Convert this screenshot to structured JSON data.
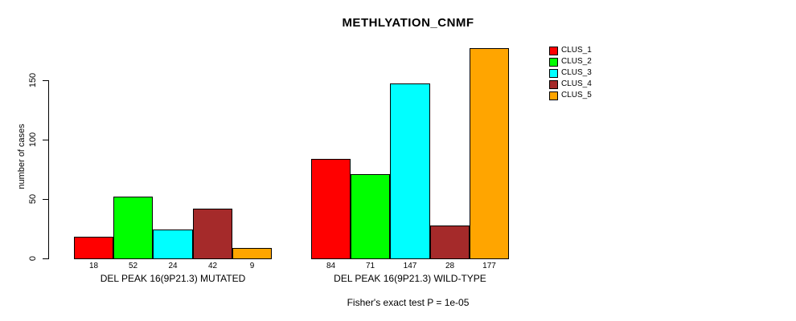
{
  "chart_data": {
    "type": "bar",
    "title": "METHLYATION_CNMF",
    "ylabel": "number of cases",
    "xlabel": "",
    "footnote": "Fisher's exact test P = 1e-05",
    "yticks": [
      0,
      50,
      100,
      150
    ],
    "ylim": [
      0,
      180
    ],
    "grid": false,
    "legend_position": "right",
    "bar_border_color": "#000000",
    "axis_color": "#000000",
    "background_color": "#ffffff",
    "categories": [
      "DEL PEAK 16(9P21.3) MUTATED",
      "DEL PEAK 16(9P21.3) WILD-TYPE"
    ],
    "series": [
      {
        "name": "CLUS_1",
        "color": "#FF0000",
        "values": [
          18,
          84
        ]
      },
      {
        "name": "CLUS_2",
        "color": "#00FF00",
        "values": [
          52,
          71
        ]
      },
      {
        "name": "CLUS_3",
        "color": "#00FFFF",
        "values": [
          24,
          147
        ]
      },
      {
        "name": "CLUS_4",
        "color": "#A52A2A",
        "values": [
          42,
          28
        ]
      },
      {
        "name": "CLUS_5",
        "color": "#FFA500",
        "values": [
          9,
          177
        ]
      }
    ]
  }
}
